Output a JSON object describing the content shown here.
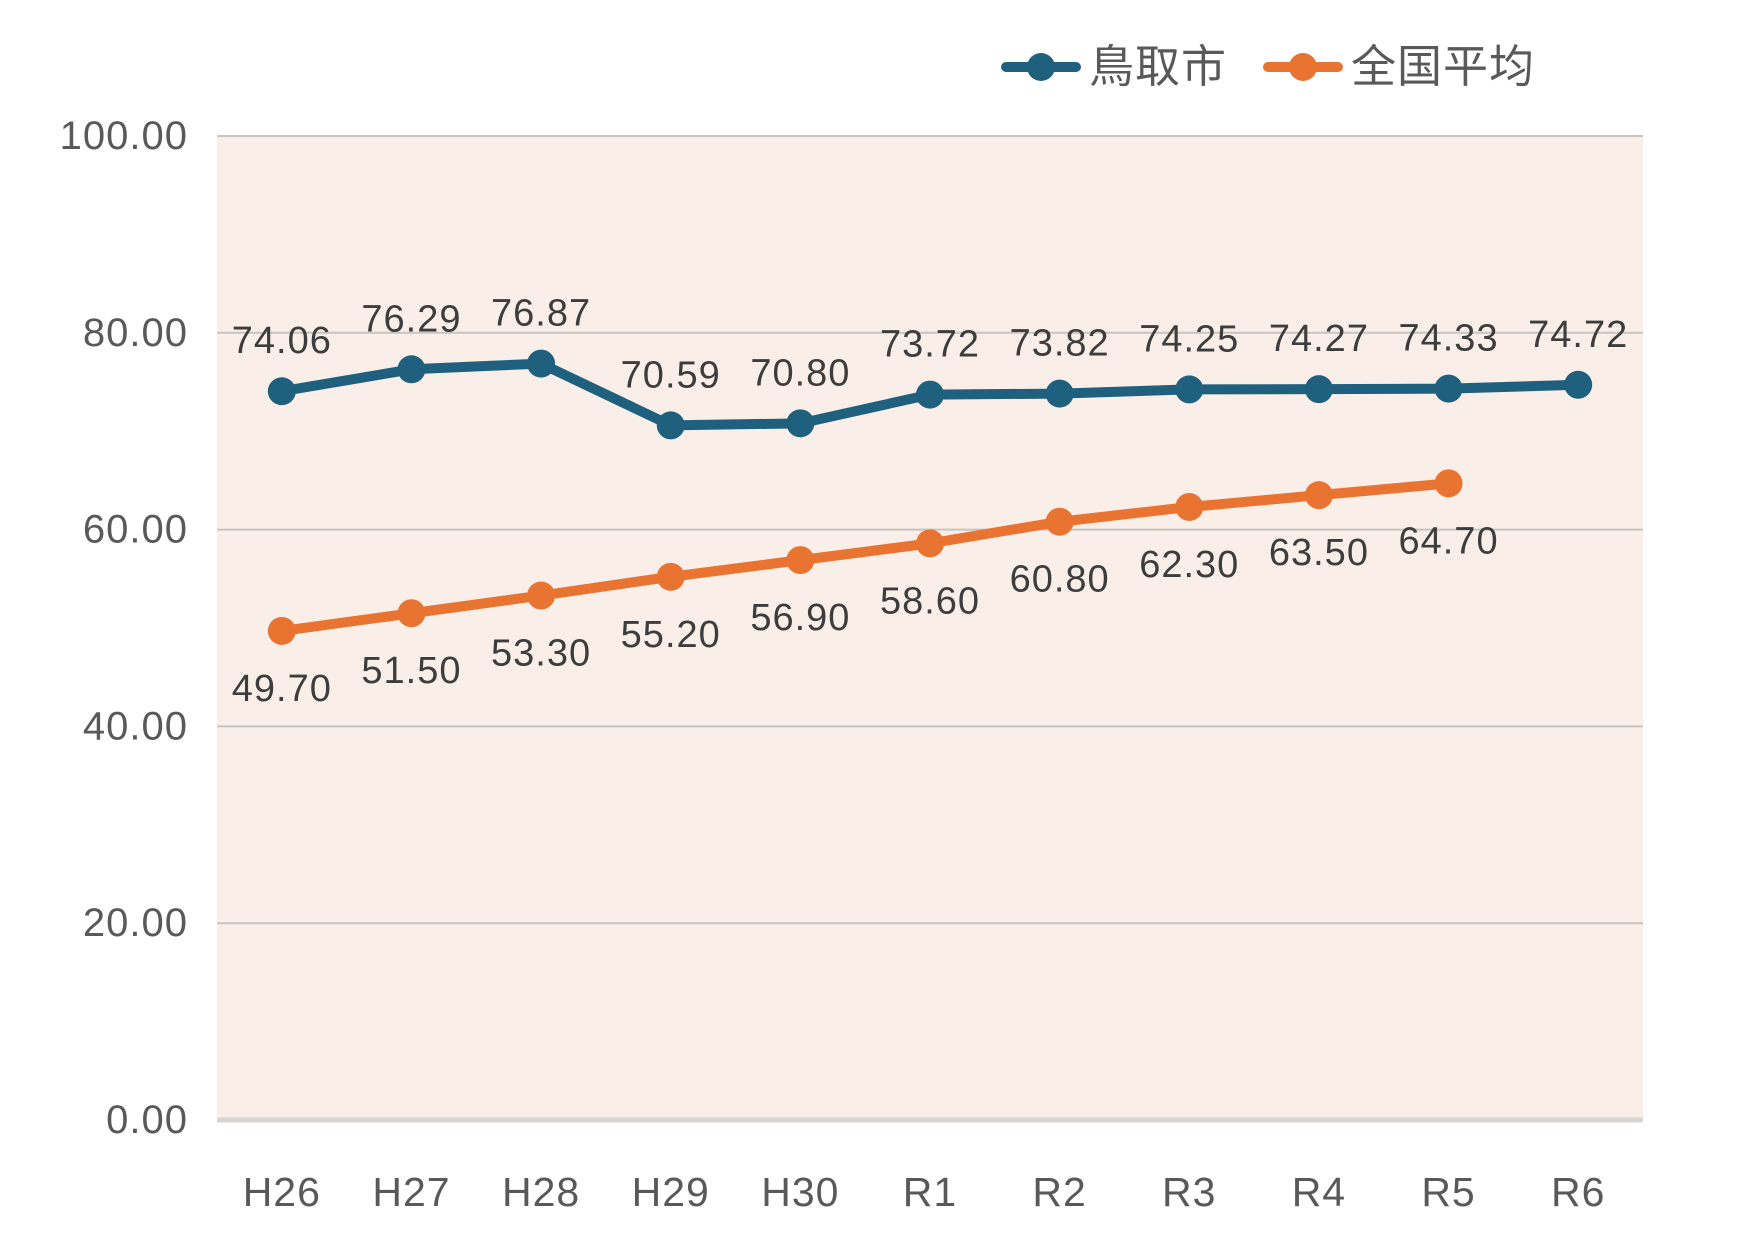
{
  "chart_data": {
    "type": "line",
    "categories": [
      "H26",
      "H27",
      "H28",
      "H29",
      "H30",
      "R1",
      "R2",
      "R3",
      "R4",
      "R5",
      "R6"
    ],
    "series": [
      {
        "name": "鳥取市",
        "key": "tottori-city",
        "color": "#20607f",
        "values": [
          74.06,
          76.29,
          76.87,
          70.59,
          70.8,
          73.72,
          73.82,
          74.25,
          74.27,
          74.33,
          74.72
        ],
        "labels": [
          "74.06",
          "76.29",
          "76.87",
          "70.59",
          "70.80",
          "73.72",
          "73.82",
          "74.25",
          "74.27",
          "74.33",
          "74.72"
        ],
        "label_position": "above"
      },
      {
        "name": "全国平均",
        "key": "national-average",
        "color": "#e97431",
        "values": [
          49.7,
          51.5,
          53.3,
          55.2,
          56.9,
          58.6,
          60.8,
          62.3,
          63.5,
          64.7
        ],
        "labels": [
          "49.70",
          "51.50",
          "53.30",
          "55.20",
          "56.90",
          "58.60",
          "60.80",
          "62.30",
          "63.50",
          "64.70"
        ],
        "label_position": "below"
      }
    ],
    "title": "",
    "xlabel": "",
    "ylabel": "",
    "ylim": [
      0,
      100
    ],
    "yticks": [
      {
        "value": 0,
        "label": "0.00"
      },
      {
        "value": 20,
        "label": "20.00"
      },
      {
        "value": 40,
        "label": "40.00"
      },
      {
        "value": 60,
        "label": "60.00"
      },
      {
        "value": 80,
        "label": "80.00"
      },
      {
        "value": 100,
        "label": "100.00"
      }
    ],
    "grid": true,
    "legend_position": "top-right",
    "colors": {
      "plot_background": "#faefe8",
      "gridline": "#c8c4c1",
      "axis_line": "#d7d4d2",
      "tick_label": "#595959",
      "data_label": "#3d3d3d"
    }
  }
}
